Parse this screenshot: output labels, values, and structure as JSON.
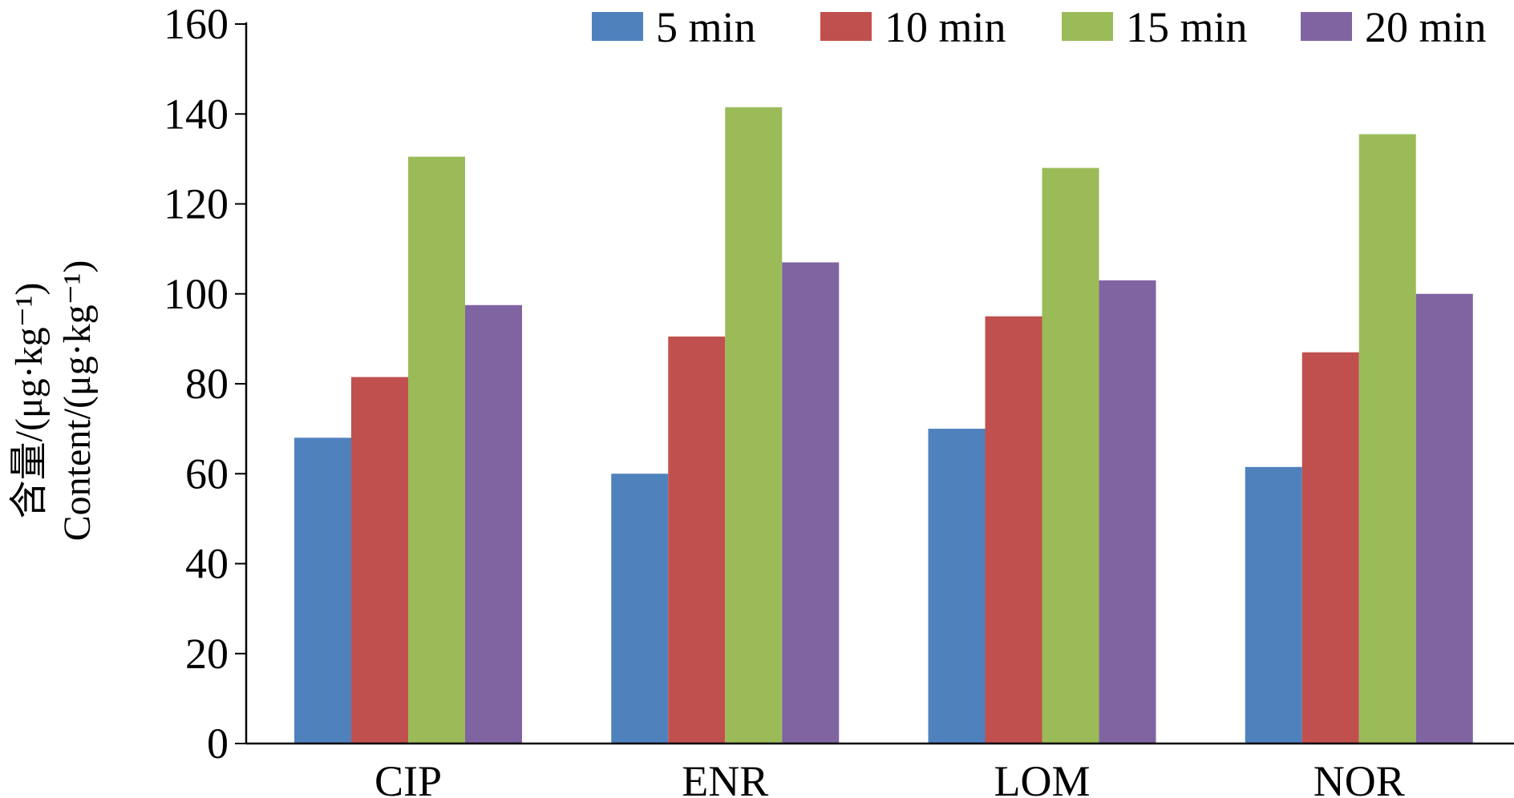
{
  "chart_data": {
    "type": "bar",
    "title": "",
    "xlabel": "",
    "ylabel_lines": [
      "含量/(μg·kg⁻¹)",
      "Content/(μg·kg⁻¹)"
    ],
    "categories": [
      "CIP",
      "ENR",
      "LOM",
      "NOR"
    ],
    "series": [
      {
        "name": "5 min",
        "color": "#4F81BD",
        "values": [
          68,
          60,
          70,
          61.5
        ]
      },
      {
        "name": "10 min",
        "color": "#C0504D",
        "values": [
          81.5,
          90.5,
          95,
          87
        ]
      },
      {
        "name": "15 min",
        "color": "#9BBB59",
        "values": [
          130.5,
          141.5,
          128,
          135.5
        ]
      },
      {
        "name": "20 min",
        "color": "#8064A2",
        "values": [
          97.5,
          107,
          103,
          100
        ]
      }
    ],
    "ylim": [
      0,
      160
    ],
    "yticks": [
      0,
      20,
      40,
      60,
      80,
      100,
      120,
      140,
      160
    ],
    "grid": false,
    "legend_position": "top-right"
  }
}
